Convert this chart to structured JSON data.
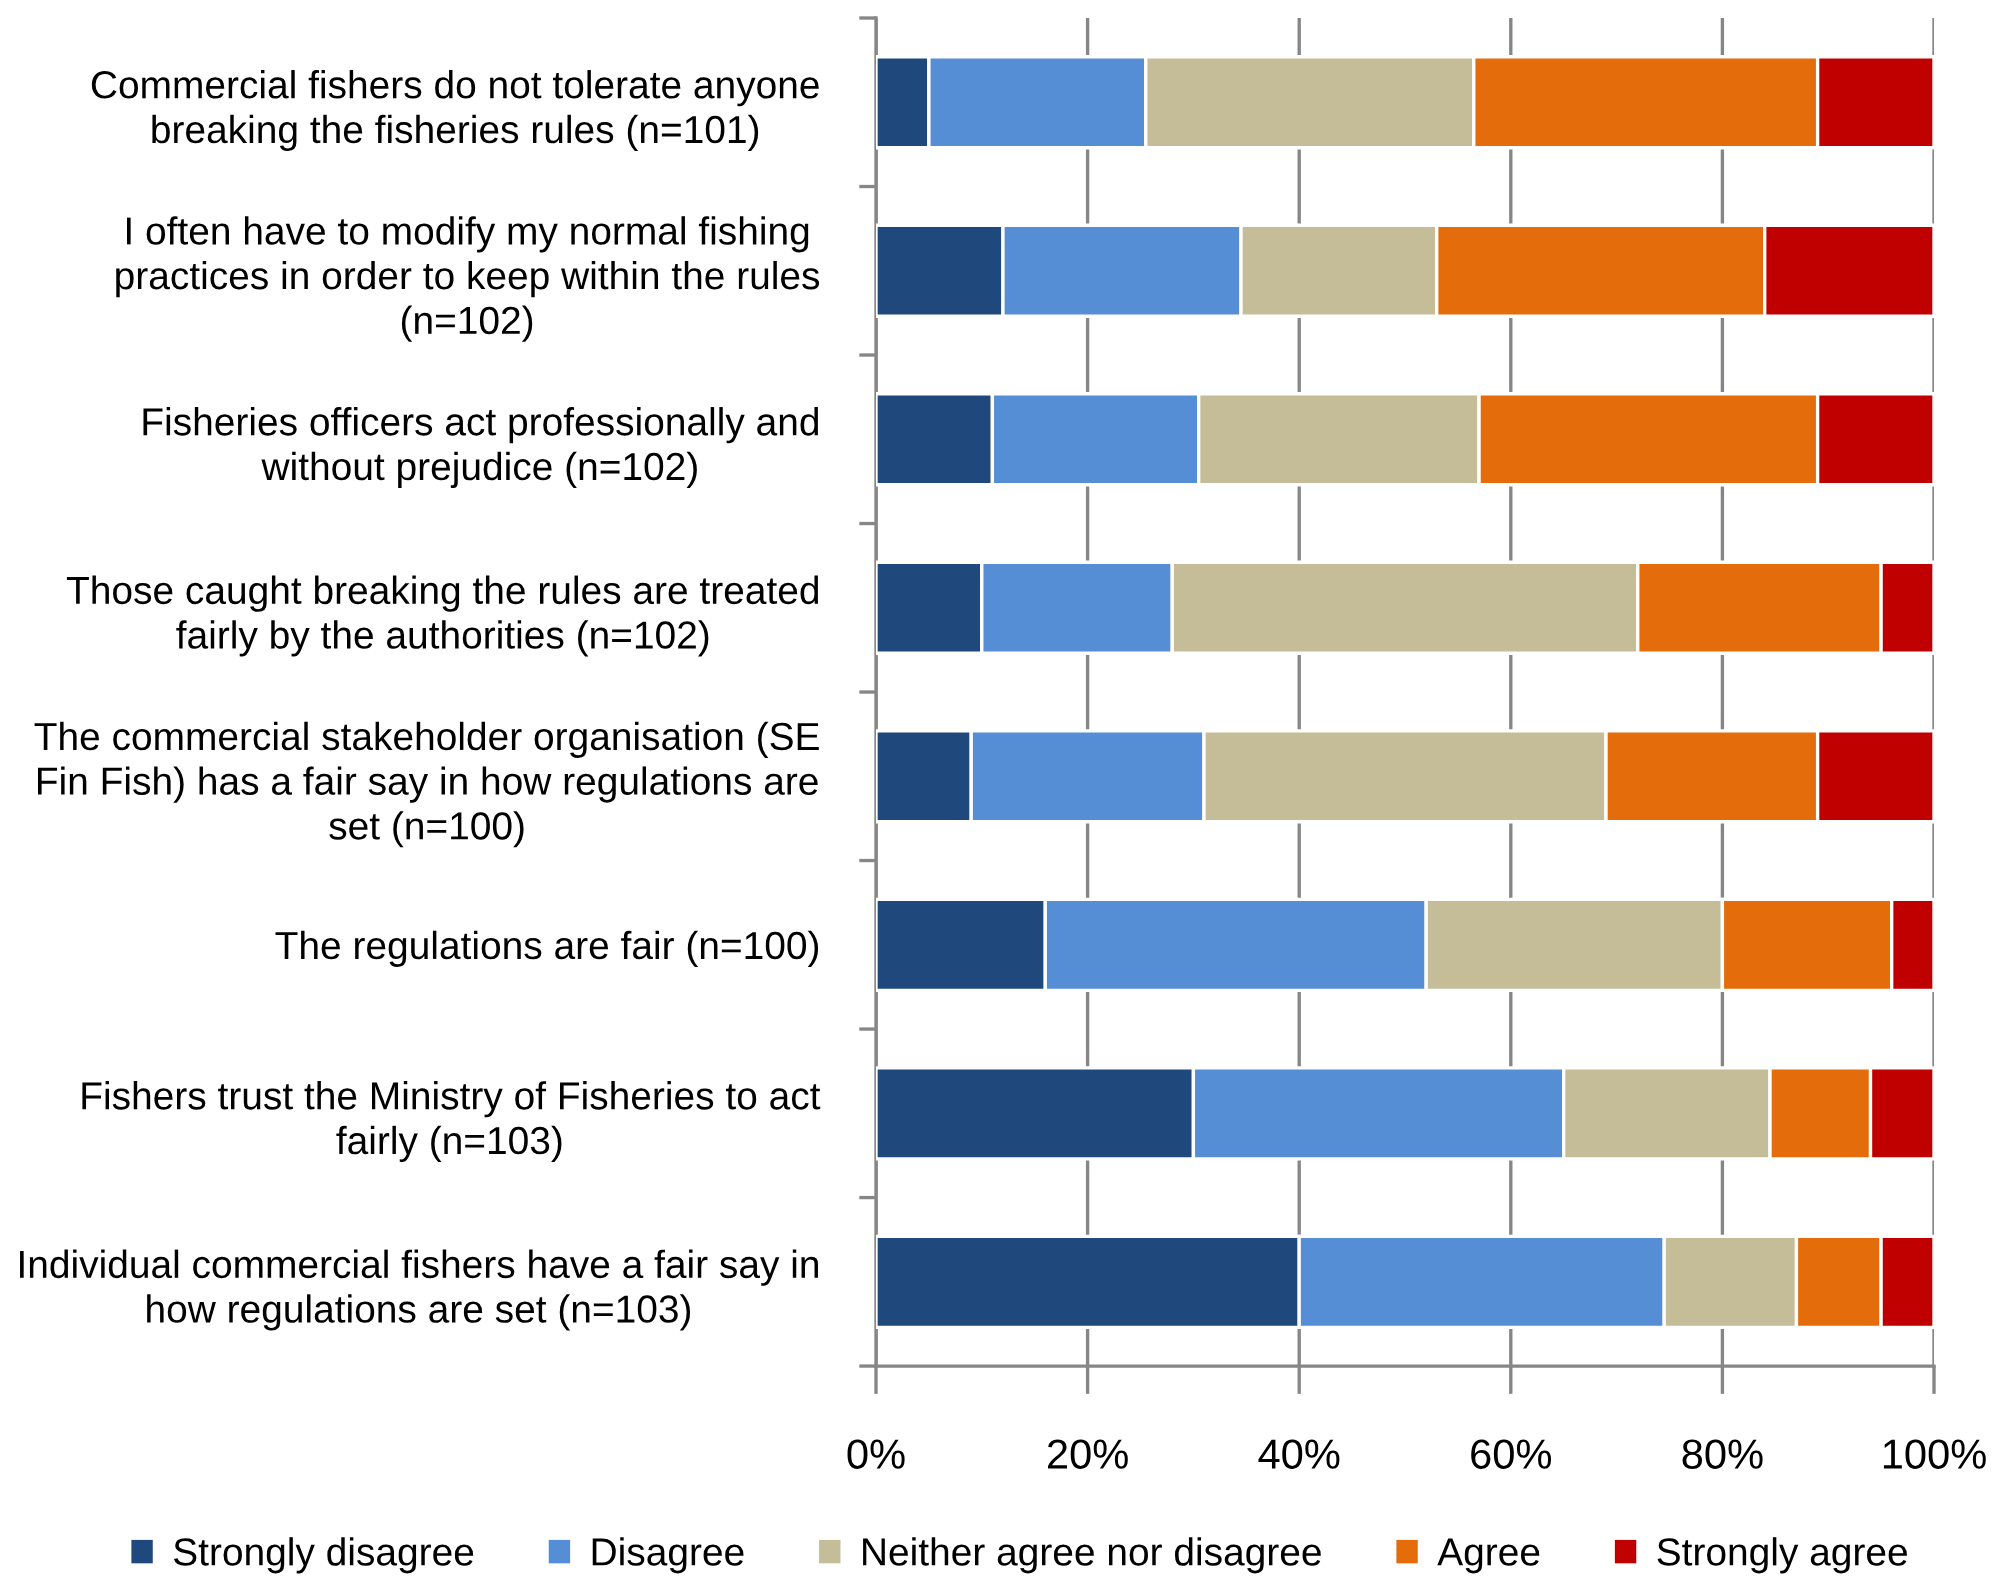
{
  "chart_data": {
    "type": "bar",
    "orientation": "horizontal",
    "stacked": true,
    "categories": [
      "Commercial fishers do not tolerate anyone\nbreaking the fisheries rules (n=101)",
      "I often have to modify my normal fishing\npractices in order to keep within the rules\n(n=102)",
      "Fisheries officers act professionally and\nwithout prejudice (n=102)",
      "Those caught breaking the rules are treated\nfairly by the authorities (n=102)",
      "The commercial stakeholder organisation (SE\nFin Fish) has a fair say in how regulations are\nset (n=100)",
      "The regulations are fair (n=100)",
      "Fishers trust the Ministry of Fisheries to act\nfairly (n=103)",
      "Individual commercial fishers have a fair say in\nhow regulations are set (n=103)"
    ],
    "series": [
      {
        "name": "Strongly disagree",
        "color": "#1f497d",
        "values": [
          5,
          12,
          11,
          10,
          9,
          16,
          30,
          40
        ]
      },
      {
        "name": "Disagree",
        "color": "#558ed5",
        "values": [
          20.5,
          22.5,
          19.5,
          18,
          22,
          36,
          35,
          34.5
        ]
      },
      {
        "name": "Neither agree nor disagree",
        "color": "#c4bd97",
        "values": [
          31,
          18.5,
          26.5,
          44,
          38,
          28,
          19.5,
          12.5
        ]
      },
      {
        "name": "Agree",
        "color": "#e46c0a",
        "values": [
          32.5,
          31,
          32,
          23,
          20,
          16,
          9.5,
          8
        ]
      },
      {
        "name": "Strongly agree",
        "color": "#c00000",
        "values": [
          11,
          16,
          11,
          5,
          11,
          4,
          6,
          5
        ]
      }
    ],
    "xlim": [
      0,
      100
    ],
    "xticks": [
      {
        "value": 0,
        "label": "0%"
      },
      {
        "value": 20,
        "label": "20%"
      },
      {
        "value": 40,
        "label": "40%"
      },
      {
        "value": 60,
        "label": "60%"
      },
      {
        "value": 80,
        "label": "80%"
      },
      {
        "value": 100,
        "label": "100%"
      }
    ],
    "grid": "x",
    "legend": "bottom"
  }
}
